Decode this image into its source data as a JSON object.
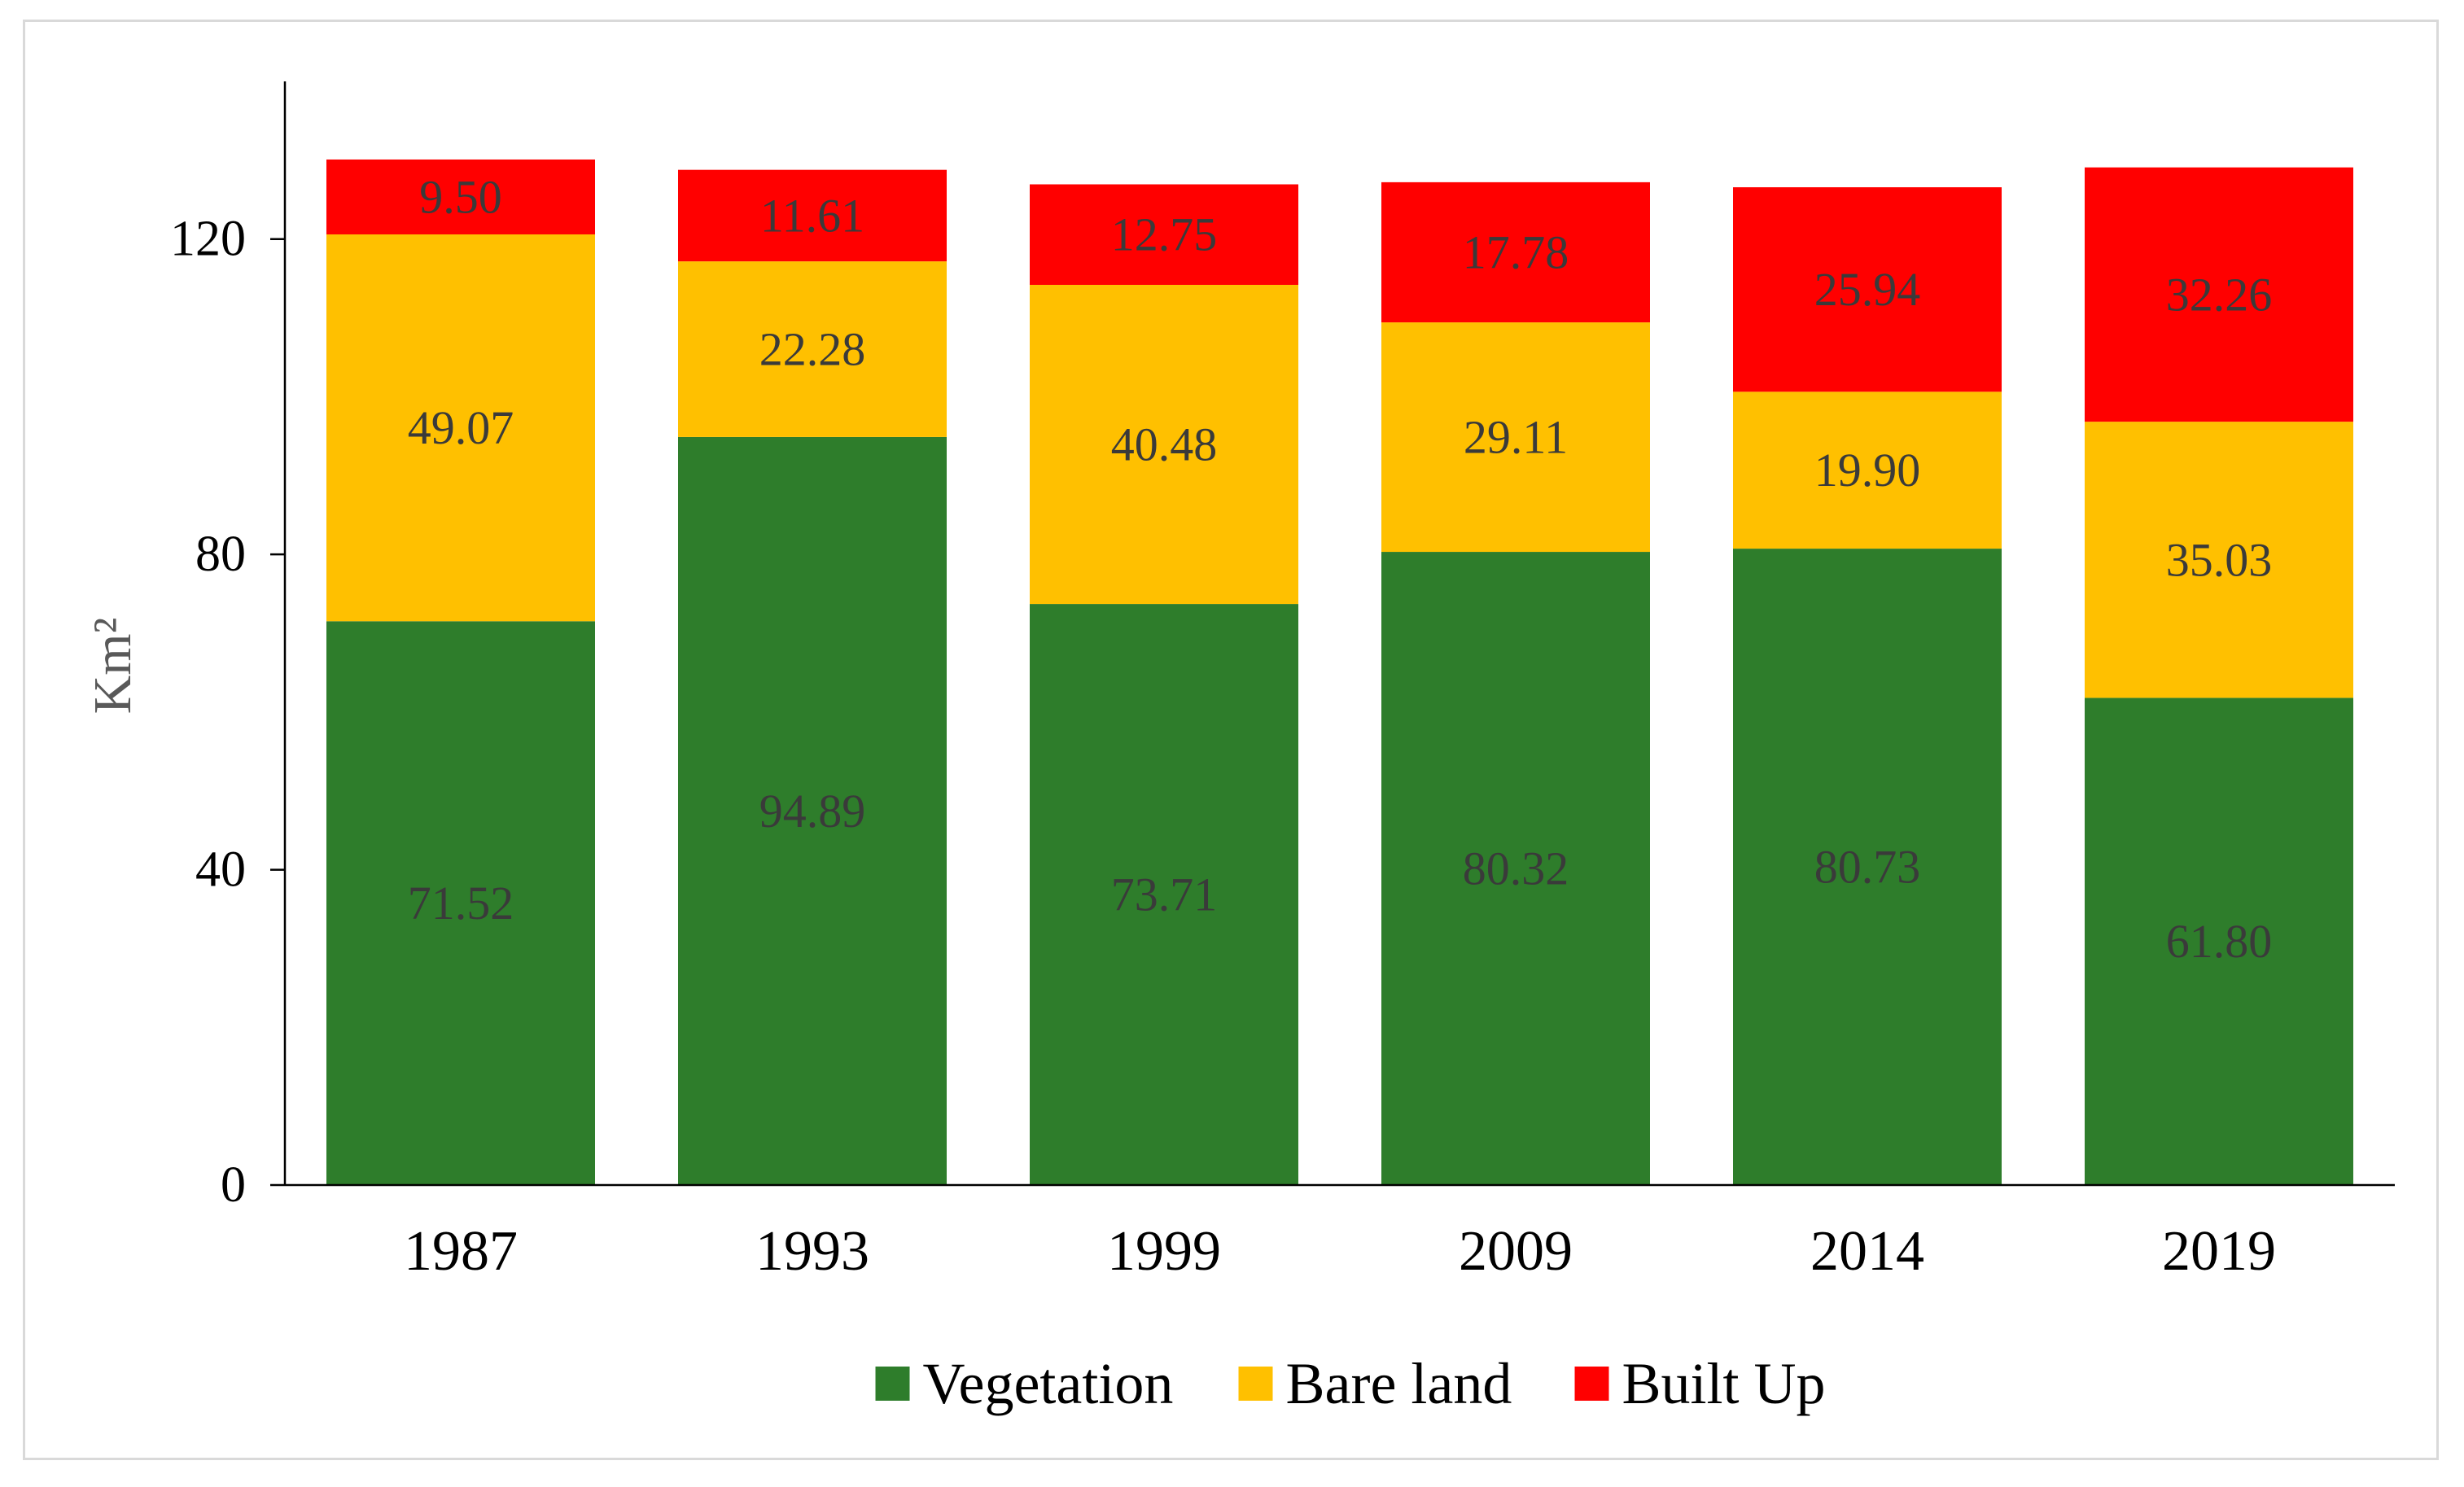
{
  "chart_data": {
    "type": "bar",
    "stacked": true,
    "title": "",
    "xlabel": "",
    "ylabel": "Km²",
    "ylim": [
      0,
      140
    ],
    "yticks": [
      "0",
      "40",
      "80",
      "120"
    ],
    "grid": false,
    "legend_position": "bottom",
    "categories": [
      "1987",
      "1993",
      "1999",
      "2009",
      "2014",
      "2019"
    ],
    "series": [
      {
        "name": "Vegetation",
        "color": "#2e7d2b",
        "values": [
          71.52,
          94.89,
          73.71,
          80.32,
          80.73,
          61.8
        ],
        "labels": [
          "71.52",
          "94.89",
          "73.71",
          "80.32",
          "80.73",
          "61.80"
        ]
      },
      {
        "name": "Bare land",
        "color": "#ffc000",
        "values": [
          49.07,
          22.28,
          40.48,
          29.11,
          19.9,
          35.03
        ],
        "labels": [
          "49.07",
          "22.28",
          "40.48",
          "29.11",
          "19.90",
          "35.03"
        ]
      },
      {
        "name": "Built Up",
        "color": "#ff0000",
        "values": [
          9.5,
          11.61,
          12.75,
          17.78,
          25.94,
          32.26
        ],
        "labels": [
          "9.50",
          "11.61",
          "12.75",
          "17.78",
          "25.94",
          "32.26"
        ]
      }
    ]
  }
}
